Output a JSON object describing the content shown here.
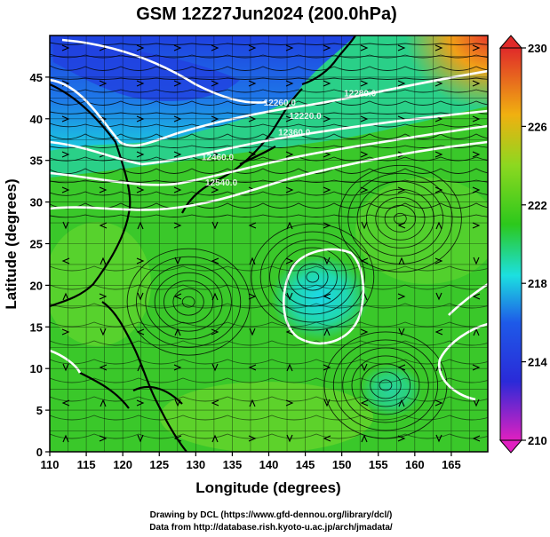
{
  "title": "GSM 12Z27Jun2024 (200.0hPa)",
  "xaxis": {
    "label": "Longitude (degrees)",
    "ticks": [
      "110",
      "115",
      "120",
      "125",
      "130",
      "135",
      "140",
      "145",
      "150",
      "155",
      "160",
      "165"
    ],
    "range": [
      110,
      170
    ]
  },
  "yaxis": {
    "label": "Latitude  (degrees)",
    "ticks": [
      "0",
      "5",
      "10",
      "15",
      "20",
      "25",
      "30",
      "35",
      "40",
      "45"
    ],
    "range": [
      0,
      50
    ]
  },
  "colorbar": {
    "ticks": [
      "210",
      "214",
      "218",
      "222",
      "226",
      "230"
    ],
    "range": [
      210,
      230
    ]
  },
  "contour_labels": [
    {
      "text": "12260.0",
      "lon": 141.5,
      "lat": 41.6
    },
    {
      "text": "12280.0",
      "lon": 152.5,
      "lat": 42.7
    },
    {
      "text": "12220.0",
      "lon": 145.0,
      "lat": 40.0
    },
    {
      "text": "12360.0",
      "lon": 143.5,
      "lat": 38.0
    },
    {
      "text": "12460.0",
      "lon": 133.0,
      "lat": 35.0
    },
    {
      "text": "12540.0",
      "lon": 133.5,
      "lat": 32.0
    }
  ],
  "map_data": {
    "field": "temperature (shaded), streamlines, geopotential height contours",
    "shading_colors": {
      "low": "#e020c0",
      "cold": "#1e3ae0",
      "cool": "#1cc8e0",
      "mid": "#2cc81c",
      "warm": "#f0a010",
      "high": "#e02a2a"
    },
    "cyclonic_centers": [
      {
        "lon": 146.0,
        "lat": 21.0
      },
      {
        "lon": 156.0,
        "lat": 8.0
      },
      {
        "lon": 158.0,
        "lat": 28.0
      },
      {
        "lon": 129.0,
        "lat": 18.0
      }
    ]
  },
  "credits": [
    "Drawing by DCL (https://www.gfd-dennou.org/library/dcl/)",
    "Data from http://database.rish.kyoto-u.ac.jp/arch/jmadata/"
  ]
}
